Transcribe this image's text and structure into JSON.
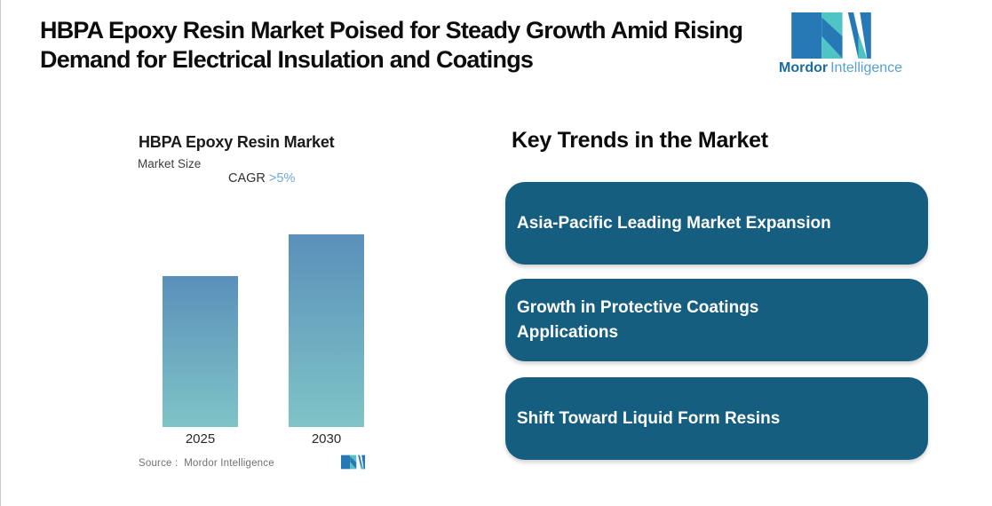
{
  "header": {
    "title": "HBPA Epoxy Resin Market Poised for Steady Growth Amid Rising\nDemand for Electrical Insulation and Coatings",
    "logo": {
      "word1": "Mordor",
      "word2": "Intelligence"
    }
  },
  "chart": {
    "title": "HBPA Epoxy Resin Market",
    "subtitle": "Market Size",
    "cagr_label": "CAGR",
    "cagr_value": ">5%",
    "source_label": "Source :  Mordor Intelligence"
  },
  "chart_data": {
    "type": "bar",
    "categories": [
      "2025",
      "2030"
    ],
    "values": [
      1,
      1.28
    ],
    "title": "HBPA Epoxy Resin Market",
    "subtitle": "Market Size",
    "annotation": "CAGR >5%",
    "xlabel": "",
    "ylabel": "Market Size (relative; value axis not shown)",
    "value_labels_shown": false,
    "gridlines": false,
    "colors": {
      "bar_gradient_top": "#5a90ba",
      "bar_gradient_bottom": "#7fc4c7"
    }
  },
  "trends": {
    "heading": "Key Trends in the Market",
    "items": [
      {
        "label": "Asia-Pacific Leading Market Expansion"
      },
      {
        "label": "Growth in Protective Coatings\nApplications"
      },
      {
        "label": "Shift Toward Liquid Form Resins"
      }
    ]
  },
  "colors": {
    "pill_background": "#155e80",
    "cagr_accent": "#6aa9d8",
    "logo_teal": "#4fc4c4",
    "logo_blue": "#2779b6",
    "wordmark_dark": "#1c6ba3",
    "wordmark_light": "#58a0cf"
  }
}
